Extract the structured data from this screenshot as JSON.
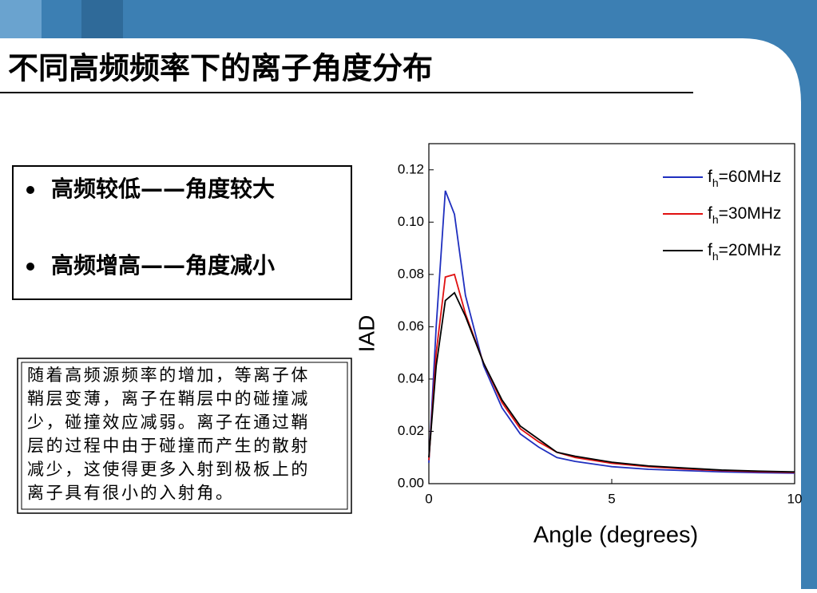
{
  "header": {
    "title": "不同高频频率下的离子角度分布"
  },
  "bullets": [
    "高频较低——角度较大",
    "高频增高——角度减小"
  ],
  "note": {
    "lines": [
      "随着高频源频率的增加，等离子体",
      "鞘层变薄，离子在鞘层中的碰撞减",
      "少，碰撞效应减弱。离子在通过鞘",
      "层的过程中由于碰撞而产生的散射",
      "减少，这使得更多入射到极板上的",
      "离子具有很小的入射角。"
    ]
  },
  "chart_data": {
    "type": "line",
    "x_label": "Angle (degrees)",
    "y_label": "IAD",
    "x": [
      0,
      0.2,
      0.45,
      0.7,
      1.0,
      1.5,
      2,
      2.5,
      3,
      3.5,
      4,
      5,
      6,
      7,
      8,
      9,
      10
    ],
    "series": [
      {
        "name": "fh=60MHz",
        "color": "#1f2fbf",
        "values": [
          0.008,
          0.06,
          0.112,
          0.103,
          0.072,
          0.045,
          0.029,
          0.019,
          0.014,
          0.01,
          0.0085,
          0.0065,
          0.0055,
          0.005,
          0.0045,
          0.0042,
          0.004
        ]
      },
      {
        "name": "fh=30MHz",
        "color": "#e01010",
        "values": [
          0.009,
          0.05,
          0.079,
          0.08,
          0.065,
          0.046,
          0.031,
          0.021,
          0.016,
          0.012,
          0.01,
          0.0078,
          0.0065,
          0.0056,
          0.005,
          0.0046,
          0.0043
        ]
      },
      {
        "name": "fh=20MHz",
        "color": "#000000",
        "values": [
          0.01,
          0.045,
          0.07,
          0.073,
          0.064,
          0.046,
          0.032,
          0.022,
          0.017,
          0.012,
          0.0105,
          0.0082,
          0.0068,
          0.006,
          0.0052,
          0.0048,
          0.0045
        ]
      }
    ],
    "xlim": [
      0,
      10
    ],
    "xticks": [
      0,
      5,
      10
    ],
    "ylim": [
      0,
      0.13
    ],
    "yticks": [
      {
        "value": 0,
        "label": "0.00"
      },
      0.02,
      0.04,
      0.06,
      0.08,
      {
        "value": 0.1,
        "label": "0.10"
      },
      0.12
    ],
    "legend": "upper right"
  }
}
